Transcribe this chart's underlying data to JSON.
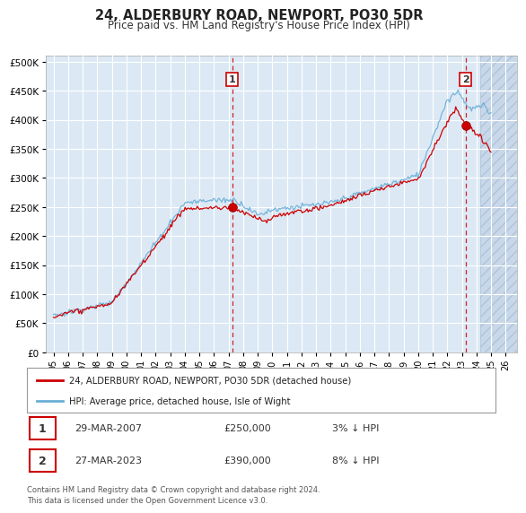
{
  "title": "24, ALDERBURY ROAD, NEWPORT, PO30 5DR",
  "subtitle": "Price paid vs. HM Land Registry's House Price Index (HPI)",
  "ytick_vals": [
    0,
    50000,
    100000,
    150000,
    200000,
    250000,
    300000,
    350000,
    400000,
    450000,
    500000
  ],
  "ylim": [
    0,
    510000
  ],
  "xlim_start": 1994.5,
  "xlim_end": 2026.8,
  "plot_bg_color": "#dce9f5",
  "future_cutoff": 2024.25,
  "sale1_x": 2007.24,
  "sale1_y": 250000,
  "sale2_x": 2023.24,
  "sale2_y": 390000,
  "legend_line1": "24, ALDERBURY ROAD, NEWPORT, PO30 5DR (detached house)",
  "legend_line2": "HPI: Average price, detached house, Isle of Wight",
  "annotation1_date": "29-MAR-2007",
  "annotation1_price": "£250,000",
  "annotation1_hpi": "3% ↓ HPI",
  "annotation2_date": "27-MAR-2023",
  "annotation2_price": "£390,000",
  "annotation2_hpi": "8% ↓ HPI",
  "footer": "Contains HM Land Registry data © Crown copyright and database right 2024.\nThis data is licensed under the Open Government Licence v3.0.",
  "line_red_color": "#cc0000",
  "line_blue_color": "#6baed6",
  "dashed_line_color": "#cc0000",
  "grid_color": "#e8e8e8",
  "xticks": [
    1995,
    1996,
    1997,
    1998,
    1999,
    2000,
    2001,
    2002,
    2003,
    2004,
    2005,
    2006,
    2007,
    2008,
    2009,
    2010,
    2011,
    2012,
    2013,
    2014,
    2015,
    2016,
    2017,
    2018,
    2019,
    2020,
    2021,
    2022,
    2023,
    2024,
    2025,
    2026
  ]
}
